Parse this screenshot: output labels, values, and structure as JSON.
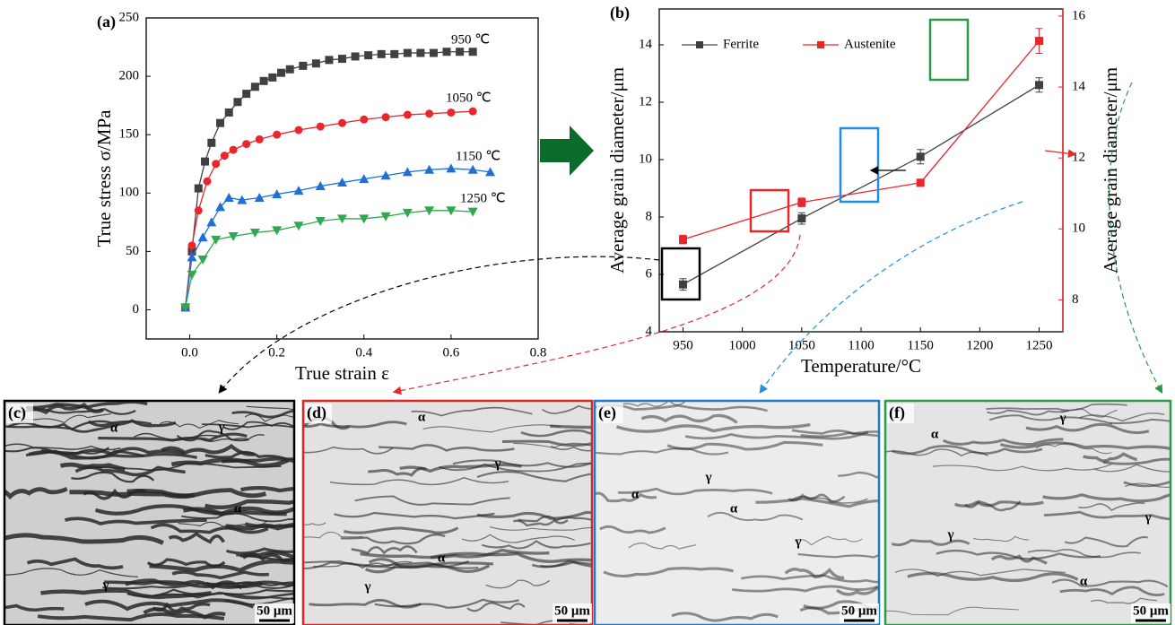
{
  "chart_data": [
    {
      "type": "line",
      "title": "(a)",
      "x_label": "True strain ε",
      "y_label": "True stress σ/MPa",
      "xlim": [
        -0.1,
        0.8
      ],
      "xticks": [
        {
          "value": 0,
          "label": "0.0"
        },
        0.2,
        0.4,
        0.6,
        0.8
      ],
      "ylim": [
        -25,
        250
      ],
      "yticks": [
        0,
        50,
        100,
        150,
        200,
        250
      ],
      "series": [
        {
          "name": "950 ℃",
          "color": "#404040",
          "marker": "square",
          "x": [
            -0.01,
            0.005,
            0.02,
            0.035,
            0.05,
            0.07,
            0.09,
            0.11,
            0.13,
            0.15,
            0.17,
            0.19,
            0.21,
            0.23,
            0.26,
            0.29,
            0.32,
            0.35,
            0.38,
            0.41,
            0.44,
            0.47,
            0.5,
            0.53,
            0.56,
            0.59,
            0.62,
            0.65
          ],
          "values": [
            2,
            50,
            104,
            127,
            143,
            160,
            169,
            178,
            185,
            191,
            196,
            199,
            203,
            206,
            209,
            211,
            214,
            215,
            217,
            218,
            219,
            219,
            220,
            220,
            220,
            221,
            221,
            221
          ]
        },
        {
          "name": "1050 ℃",
          "color": "#e8262b",
          "marker": "circle",
          "x": [
            -0.01,
            0.005,
            0.02,
            0.04,
            0.06,
            0.08,
            0.1,
            0.13,
            0.16,
            0.2,
            0.25,
            0.3,
            0.35,
            0.4,
            0.45,
            0.5,
            0.55,
            0.6,
            0.65
          ],
          "values": [
            2,
            55,
            85,
            110,
            125,
            132,
            137,
            142,
            146,
            150,
            154,
            157,
            160,
            163,
            165,
            167,
            168,
            169,
            170
          ]
        },
        {
          "name": "1150 ℃",
          "color": "#1f6fd6",
          "marker": "triangle-up",
          "x": [
            -0.01,
            0.005,
            0.03,
            0.05,
            0.07,
            0.09,
            0.12,
            0.16,
            0.2,
            0.25,
            0.3,
            0.35,
            0.4,
            0.45,
            0.5,
            0.55,
            0.6,
            0.65,
            0.69
          ],
          "values": [
            2,
            45,
            62,
            75,
            88,
            96,
            94,
            96,
            99,
            102,
            106,
            109,
            112,
            115,
            118,
            120,
            121,
            120,
            118
          ]
        },
        {
          "name": "1250 ℃",
          "color": "#2fa84f",
          "marker": "triangle-down",
          "x": [
            -0.01,
            0.005,
            0.03,
            0.06,
            0.1,
            0.15,
            0.2,
            0.25,
            0.3,
            0.35,
            0.4,
            0.45,
            0.5,
            0.55,
            0.6,
            0.65
          ],
          "values": [
            2,
            30,
            43,
            60,
            63,
            66,
            68,
            72,
            76,
            78,
            78,
            80,
            83,
            85,
            85,
            84
          ]
        }
      ]
    },
    {
      "type": "line",
      "title": "(b)",
      "x_label": "Temperature/°C",
      "y_label": "Average grain diameter/μm",
      "y2_label": "Average grain diameter/μm",
      "legend": "upper-left",
      "x": [
        950,
        1050,
        1150,
        1250
      ],
      "xlim": [
        930,
        1270
      ],
      "xticks": [
        950,
        1000,
        1050,
        1100,
        1150,
        1200,
        1250
      ],
      "ylim": [
        4,
        15.25
      ],
      "yticks": [
        4,
        6,
        8,
        10,
        12,
        14
      ],
      "y2lim": [
        7.1,
        16.2
      ],
      "y2ticks": [
        8,
        10,
        12,
        14,
        16
      ],
      "y2_color": "#e8262b",
      "series": [
        {
          "name": "Ferrite",
          "color": "#404040",
          "values": [
            5.65,
            7.95,
            10.1,
            12.6
          ],
          "errors": [
            0.2,
            0.2,
            0.25,
            0.25
          ]
        },
        {
          "name": "Austenite",
          "color": "#e8262b",
          "axis": "y2",
          "values": [
            9.7,
            10.75,
            11.3,
            15.3
          ],
          "errors": [
            0.12,
            0.12,
            0.1,
            0.35
          ]
        }
      ]
    }
  ],
  "micrographs": [
    {
      "label": "(c)",
      "phase_labels": [
        "α",
        "γ",
        "α",
        "γ"
      ],
      "scale_bar": "50 μm"
    },
    {
      "label": "(d)",
      "phase_labels": [
        "α",
        "γ",
        "α",
        "γ"
      ],
      "scale_bar": "50 μm"
    },
    {
      "label": "(e)",
      "phase_labels": [
        "γ",
        "α",
        "α",
        "γ"
      ],
      "scale_bar": "50 μm"
    },
    {
      "label": "(f)",
      "phase_labels": [
        "α",
        "γ",
        "γ",
        "γ",
        "α"
      ],
      "scale_bar": "50 μm"
    }
  ]
}
